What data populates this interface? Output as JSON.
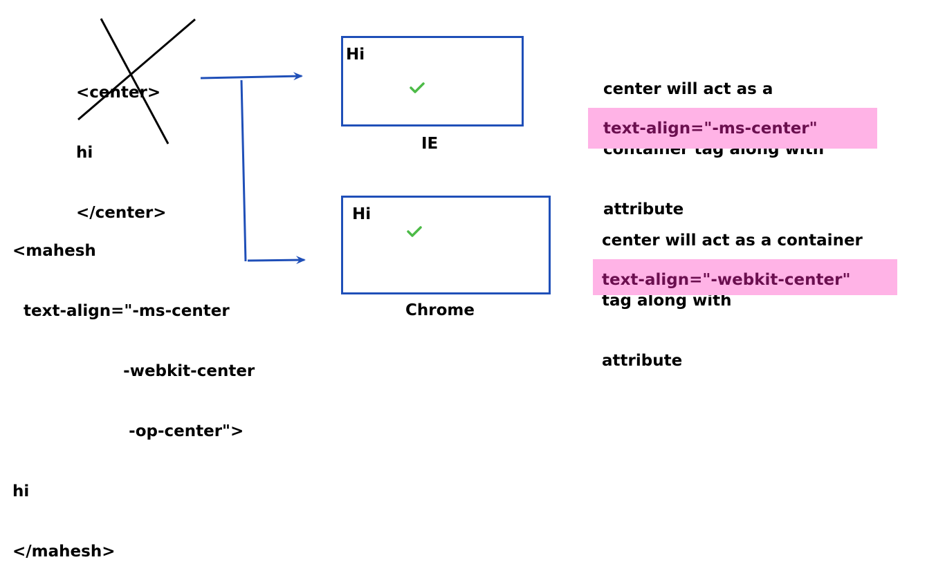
{
  "old_code": {
    "line1": "<center>",
    "line2": "hi",
    "line3": "</center>"
  },
  "custom_code": {
    "line1": "<mahesh",
    "line2": "  text-align=\"-ms-center",
    "line3": "                    -webkit-center",
    "line4": "                     -op-center\">",
    "line5": "hi",
    "line6": "</mahesh>"
  },
  "ie": {
    "box_text": "Hi",
    "label": "IE",
    "note_lines": [
      "center will act as a",
      "container tag along with",
      "attribute"
    ],
    "attribute": "text-align=\"-ms-center\""
  },
  "chrome": {
    "box_text": "Hi",
    "label": "Chrome",
    "note_lines": [
      "center will act as a container",
      "tag along with",
      "attribute"
    ],
    "attribute": "text-align=\"-webkit-center\""
  },
  "colors": {
    "box_border": "#1f4fb8",
    "arrow": "#1f4fb8",
    "check": "#4cbb47",
    "highlight": "#ffb3e6",
    "attribute_text": "#6b0f4f",
    "cross": "#000000"
  },
  "icons": [
    "check-icon",
    "cross-out-mark",
    "arrow-icon"
  ]
}
